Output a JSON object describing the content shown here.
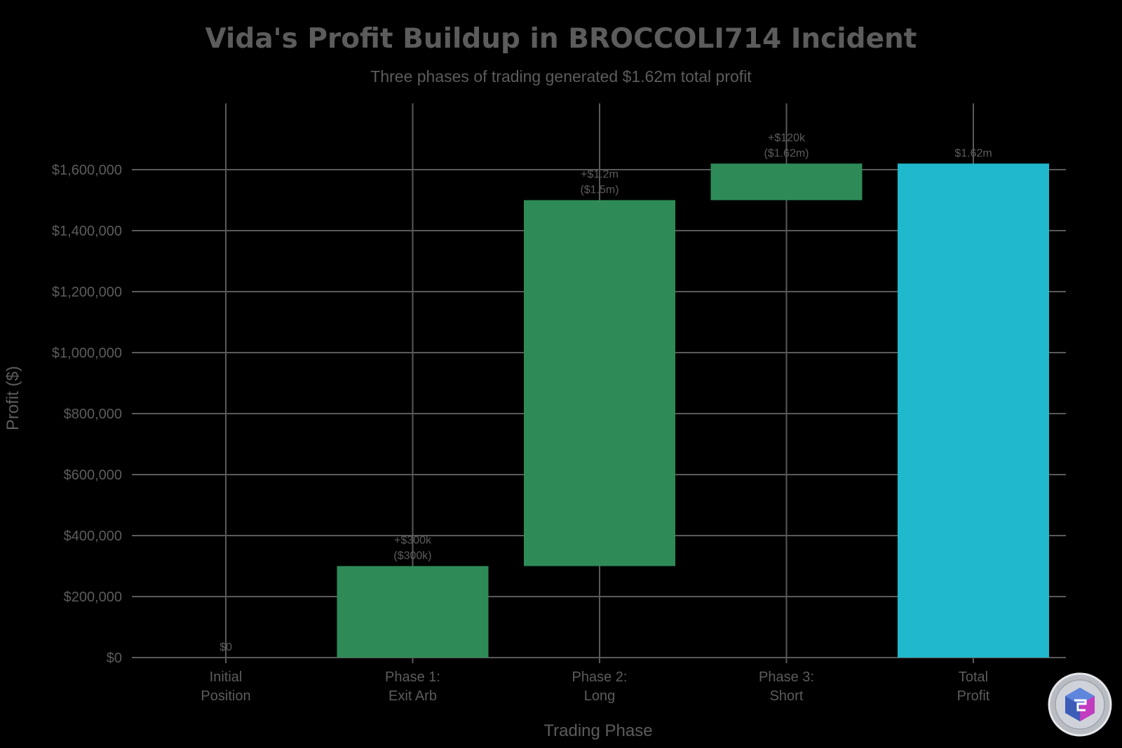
{
  "chart_data": {
    "type": "bar",
    "subtype": "waterfall",
    "title": "Vida's Profit Buildup in BROCCOLI714 Incident",
    "subtitle": "Three phases of trading generated $1.62m total profit",
    "xlabel": "Trading Phase",
    "ylabel": "Profit ($)",
    "ylim": [
      0,
      1700000
    ],
    "yticks": [
      0,
      200000,
      400000,
      600000,
      800000,
      1000000,
      1200000,
      1400000,
      1600000
    ],
    "ytick_labels": [
      "$0",
      "$200,000",
      "$400,000",
      "$600,000",
      "$800,000",
      "$1,000,000",
      "$1,200,000",
      "$1,400,000",
      "$1,600,000"
    ],
    "grid": true,
    "categories": [
      [
        "Initial",
        "Position"
      ],
      [
        "Phase 1:",
        "Exit Arb"
      ],
      [
        "Phase 2:",
        "Long"
      ],
      [
        "Phase 3:",
        "Short"
      ],
      [
        "Total",
        "Profit"
      ]
    ],
    "bars": [
      {
        "base": 0,
        "top": 0,
        "color": "#2e8b57",
        "labels": [
          "$0"
        ]
      },
      {
        "base": 0,
        "top": 300000,
        "color": "#2e8b57",
        "labels": [
          "+$300k",
          "($300k)"
        ]
      },
      {
        "base": 300000,
        "top": 1500000,
        "color": "#2e8b57",
        "labels": [
          "+$1.2m",
          "($1.5m)"
        ]
      },
      {
        "base": 1500000,
        "top": 1620000,
        "color": "#2e8b57",
        "labels": [
          "+$120k",
          "($1.62m)"
        ]
      },
      {
        "base": 0,
        "top": 1620000,
        "color": "#20b8cd",
        "labels": [
          "$1.62m"
        ]
      }
    ],
    "increments": [
      0,
      300000,
      1200000,
      120000
    ],
    "total": 1620000
  },
  "logo": {
    "name": "badge-logo-icon"
  }
}
